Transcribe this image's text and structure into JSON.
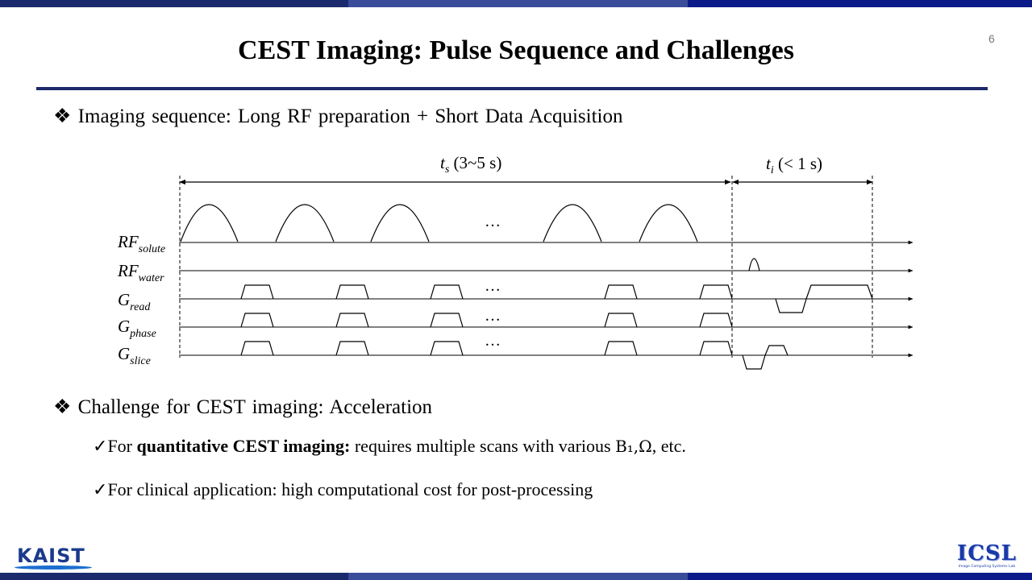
{
  "slide": {
    "title": "CEST Imaging: Pulse Sequence and Challenges",
    "page_number": "6",
    "colors": {
      "bar_dark": "#1a2a6c",
      "bar_mid": "#3a4c9a",
      "bar_blue": "#0c1a8a",
      "rule": "#1f2a6b"
    }
  },
  "bullets": [
    {
      "symbol": "❖",
      "text": "Imaging sequence: Long RF preparation + Short Data Acquisition"
    },
    {
      "symbol": "❖",
      "text": "Challenge for CEST imaging: Acceleration"
    }
  ],
  "subbullets": [
    {
      "symbol": "✓",
      "prefix": "For ",
      "bold": "quantitative CEST imaging:",
      "rest": " requires multiple scans with various ",
      "math": "B₁,Ω",
      "suffix": ", etc."
    },
    {
      "symbol": "✓",
      "text": "For clinical application: high computational cost for post-processing"
    }
  ],
  "diagram": {
    "saturation_label": {
      "main": "t",
      "sub": "s",
      "rest": " (3~5 s)"
    },
    "imaging_label": {
      "main": "t",
      "sub": "i",
      "rest": " (< 1 s)"
    },
    "ellipsis": "…",
    "channels": [
      {
        "main": "RF",
        "sub": "solute"
      },
      {
        "main": "RF",
        "sub": "water"
      },
      {
        "main": "G",
        "sub": "read"
      },
      {
        "main": "G",
        "sub": "phase"
      },
      {
        "main": "G",
        "sub": "slice"
      }
    ]
  },
  "logos": {
    "left": "KAIST",
    "right": "ICSL",
    "right_sub": "Image Computing Systems Lab"
  }
}
